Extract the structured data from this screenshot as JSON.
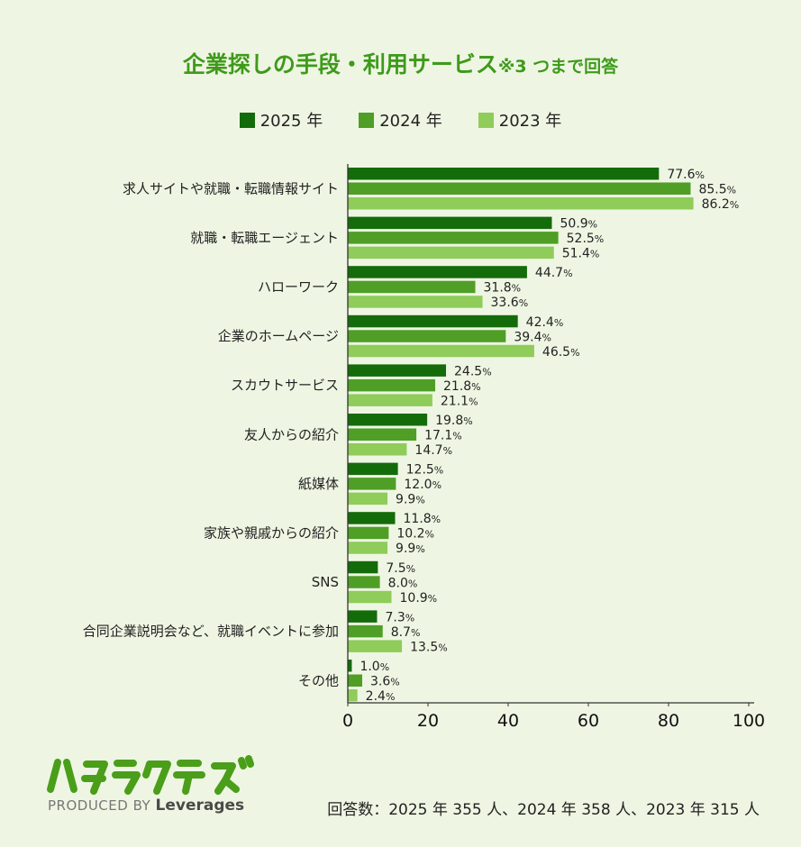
{
  "title": {
    "main": "企業探しの手段・利用サービス",
    "note": "※3 つまで回答"
  },
  "legend": [
    {
      "label": "2025 年",
      "color": "#146b0a"
    },
    {
      "label": "2024 年",
      "color": "#4f9e26"
    },
    {
      "label": "2023 年",
      "color": "#8fcc5a"
    }
  ],
  "chart_data": {
    "type": "bar",
    "orientation": "horizontal",
    "title": "企業探しの手段・利用サービス",
    "xlim": [
      0,
      100
    ],
    "xticks": [
      0,
      20,
      40,
      60,
      80,
      100
    ],
    "value_suffix": "%",
    "categories": [
      "求人サイトや就職・転職情報サイト",
      "就職・転職エージェント",
      "ハローワーク",
      "企業のホームページ",
      "スカウトサービス",
      "友人からの紹介",
      "紙媒体",
      "家族や親戚からの紹介",
      "SNS",
      "合同企業説明会など、就職イベントに参加",
      "その他"
    ],
    "series": [
      {
        "name": "2025 年",
        "color": "#146b0a",
        "values": [
          77.6,
          50.9,
          44.7,
          42.4,
          24.5,
          19.8,
          12.5,
          11.8,
          7.5,
          7.3,
          1.0
        ]
      },
      {
        "name": "2024 年",
        "color": "#4f9e26",
        "values": [
          85.5,
          52.5,
          31.8,
          39.4,
          21.8,
          17.1,
          12.0,
          10.2,
          8.0,
          8.7,
          3.6
        ]
      },
      {
        "name": "2023 年",
        "color": "#8fcc5a",
        "values": [
          86.2,
          51.4,
          33.6,
          46.5,
          21.1,
          14.7,
          9.9,
          9.9,
          10.9,
          13.5,
          2.4
        ]
      }
    ]
  },
  "logo": {
    "wordmark": "ハタラクティブ",
    "produced_by": "PRODUCED BY",
    "brand": "Leverages"
  },
  "footnote": "回答数：2025 年 355 人、2024 年 358 人、2023 年 315 人"
}
